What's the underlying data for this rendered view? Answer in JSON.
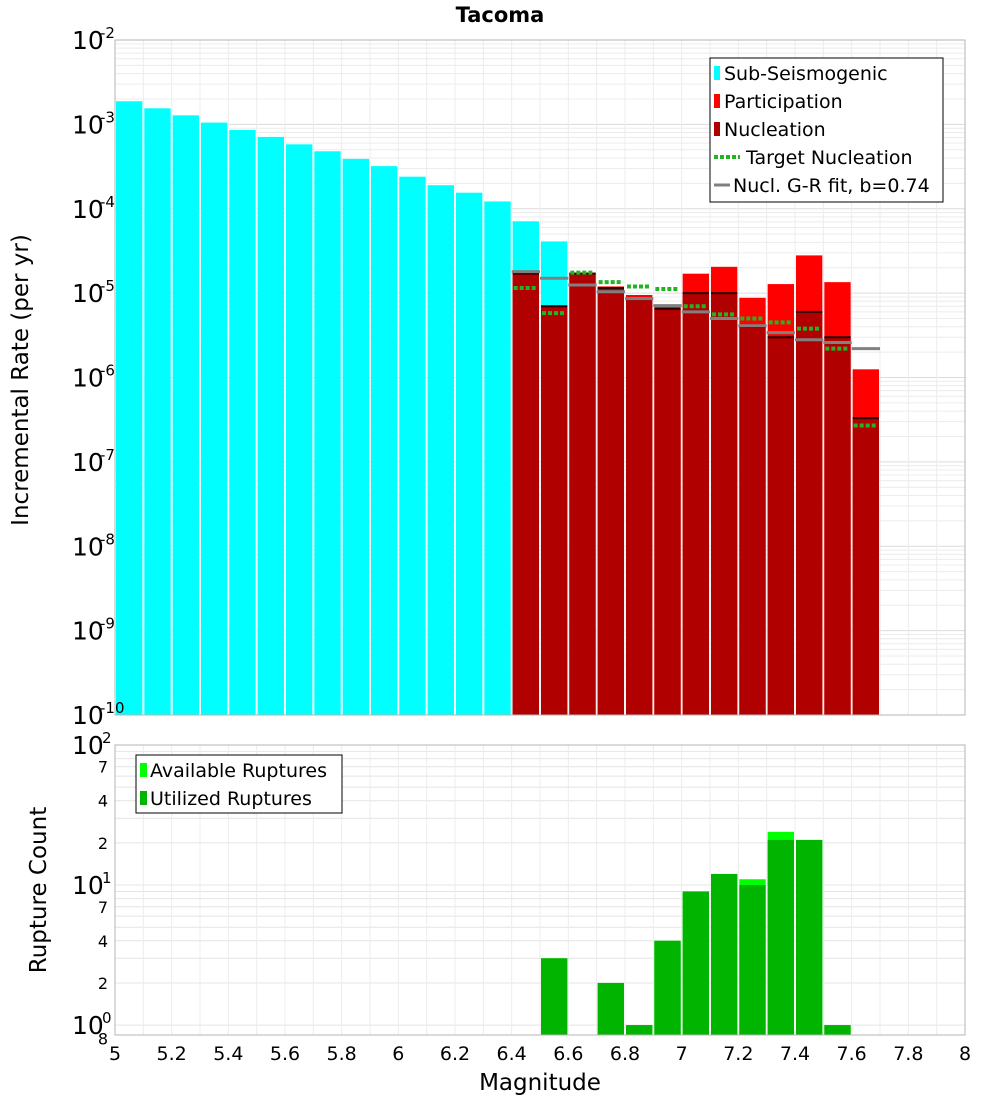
{
  "chart_data": [
    {
      "type": "bar",
      "title": "Tacoma",
      "xlabel": "",
      "ylabel": "Incremental Rate (per yr)",
      "yscale": "log",
      "ylim": [
        1e-10,
        0.01
      ],
      "xlim": [
        5,
        8
      ],
      "y_ticks": [
        {
          "base": "10",
          "exp": "-2"
        },
        {
          "base": "10",
          "exp": "-3"
        },
        {
          "base": "10",
          "exp": "-4"
        },
        {
          "base": "10",
          "exp": "-5"
        },
        {
          "base": "10",
          "exp": "-6"
        },
        {
          "base": "10",
          "exp": "-7"
        },
        {
          "base": "10",
          "exp": "-8"
        },
        {
          "base": "10",
          "exp": "-9"
        },
        {
          "base": "10",
          "exp": "-10"
        }
      ],
      "grid": true,
      "legend_position": "top-right",
      "series": [
        {
          "name": "Sub-Seismogenic",
          "color": "#00ffff",
          "x": [
            5.05,
            5.15,
            5.25,
            5.35,
            5.45,
            5.55,
            5.65,
            5.75,
            5.85,
            5.95,
            6.05,
            6.15,
            6.25,
            6.35,
            6.45,
            6.55
          ],
          "values": [
            0.00188,
            0.00155,
            0.00128,
            0.00105,
            0.00086,
            0.00071,
            0.00058,
            0.00048,
            0.00039,
            0.00032,
            0.00024,
            0.00019,
            0.000155,
            0.000122,
            7.1e-05,
            4.1e-05
          ]
        },
        {
          "name": "Participation",
          "color": "#ff0000",
          "x": [
            6.45,
            6.55,
            6.65,
            6.75,
            6.85,
            6.95,
            7.05,
            7.15,
            7.25,
            7.35,
            7.45,
            7.55,
            7.65
          ],
          "values": [
            1.8e-05,
            7e-06,
            1.75e-05,
            1.2e-05,
            9.5e-06,
            7e-06,
            1.7e-05,
            2.05e-05,
            8.8e-06,
            1.28e-05,
            2.8e-05,
            1.35e-05,
            1.25e-06
          ]
        },
        {
          "name": "Nucleation",
          "color": "#b00000",
          "x": [
            6.45,
            6.55,
            6.65,
            6.75,
            6.85,
            6.95,
            7.05,
            7.15,
            7.25,
            7.35,
            7.45,
            7.55,
            7.65
          ],
          "values": [
            1.7e-05,
            7e-06,
            1.7e-05,
            1.15e-05,
            8.5e-06,
            6.5e-06,
            1e-05,
            1e-05,
            4e-06,
            3e-06,
            6e-06,
            3e-06,
            3.3e-07
          ]
        },
        {
          "name": "Target Nucleation",
          "color": "#22b422",
          "x": [
            6.45,
            6.55,
            6.65,
            6.75,
            6.85,
            6.95,
            7.05,
            7.15,
            7.25,
            7.35,
            7.45,
            7.55,
            7.65
          ],
          "values": [
            1.15e-05,
            5.8e-06,
            1.75e-05,
            1.35e-05,
            1.2e-05,
            1.12e-05,
            7e-06,
            5.6e-06,
            5e-06,
            4.5e-06,
            3.8e-06,
            2.2e-06,
            2.7e-07
          ]
        },
        {
          "name": "Nucl. G-R fit, b=0.74",
          "color": "#808080",
          "x": [
            6.45,
            6.55,
            6.65,
            6.75,
            6.85,
            6.95,
            7.05,
            7.15,
            7.25,
            7.35,
            7.45,
            7.55,
            7.65
          ],
          "values": [
            1.8e-05,
            1.5e-05,
            1.25e-05,
            1.04e-05,
            8.6e-06,
            7.1e-06,
            6e-06,
            5e-06,
            4.1e-06,
            3.4e-06,
            2.8e-06,
            2.6e-06,
            2.2e-06
          ]
        }
      ]
    },
    {
      "type": "bar",
      "title": "",
      "xlabel": "Magnitude",
      "ylabel": "Rupture Count",
      "yscale": "log",
      "ylim": [
        0.85,
        100
      ],
      "xlim": [
        5,
        8
      ],
      "x_ticks": [
        "5",
        "5.2",
        "5.4",
        "5.6",
        "5.8",
        "6",
        "6.2",
        "6.4",
        "6.6",
        "6.8",
        "7",
        "7.2",
        "7.4",
        "7.6",
        "7.8",
        "8"
      ],
      "y_major_ticks": [
        {
          "base": "10",
          "exp": "2"
        },
        {
          "base": "10",
          "exp": "1"
        },
        {
          "base": "10",
          "exp": "0"
        }
      ],
      "y_minor_ticks": [
        "7",
        "4",
        "2",
        "7",
        "4",
        "2",
        "8"
      ],
      "grid": true,
      "legend_position": "top-left",
      "series": [
        {
          "name": "Available Ruptures",
          "color": "#00ff00",
          "x": [
            6.55,
            6.75,
            6.85,
            6.95,
            7.05,
            7.15,
            7.25,
            7.35,
            7.45,
            7.55
          ],
          "values": [
            3,
            2,
            1,
            4,
            9,
            12,
            11,
            24,
            21,
            1
          ]
        },
        {
          "name": "Utilized Ruptures",
          "color": "#00b400",
          "x": [
            6.55,
            6.75,
            6.85,
            6.95,
            7.05,
            7.15,
            7.25,
            7.35,
            7.45,
            7.55
          ],
          "values": [
            3,
            2,
            1,
            4,
            9,
            12,
            10,
            21,
            21,
            1
          ]
        }
      ]
    }
  ]
}
